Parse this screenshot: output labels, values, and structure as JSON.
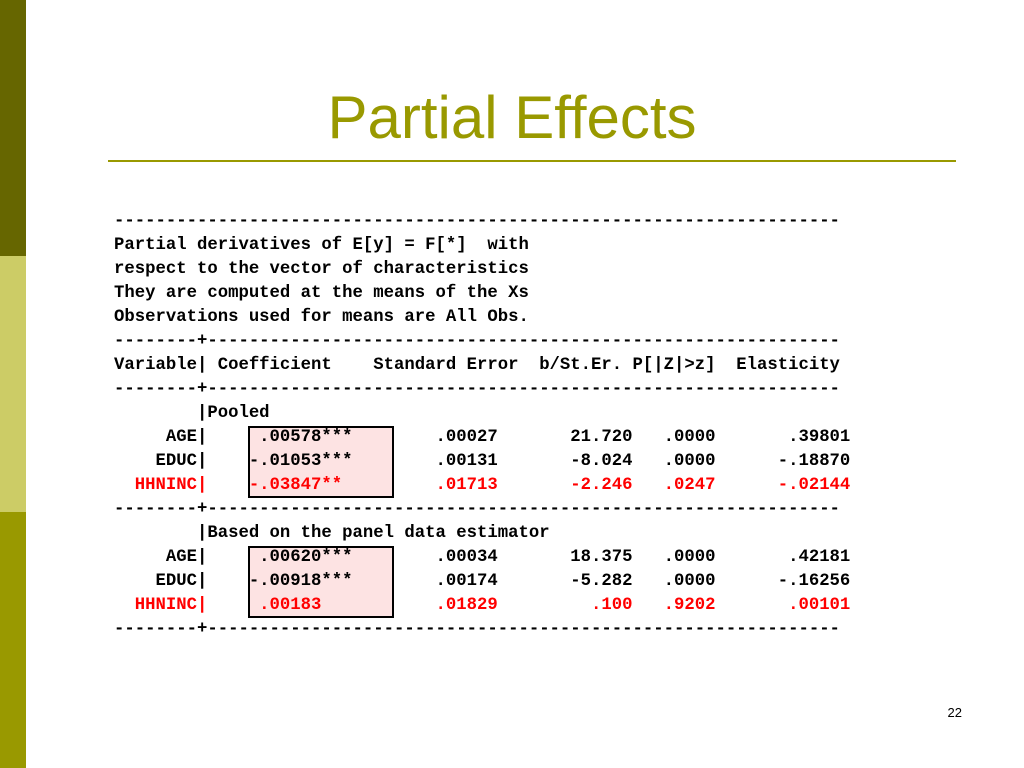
{
  "slide": {
    "title": "Partial Effects",
    "page_number": "22"
  },
  "colors": {
    "accent": "#999900",
    "dark_bar": "#666600",
    "light_bar": "#cccc66",
    "highlight": "#fde3e3",
    "red_text": "#ff0000"
  },
  "output": {
    "separator_full": "----------------------------------------------------------------------",
    "separator_split": "--------+-------------------------------------------------------------",
    "header_lines": [
      "Partial derivatives of E[y] = F[*]  with",
      "respect to the vector of characteristics",
      "They are computed at the means of the Xs",
      "Observations used for means are All Obs."
    ],
    "column_header": "Variable| Coefficient    Standard Error  b/St.Er. P[|Z|>z]  Elasticity",
    "pooled_label": "        |Pooled",
    "pooled_rows": [
      {
        "text": "     AGE|     .00578***        .00027       21.720   .0000       .39801",
        "red": false
      },
      {
        "text": "    EDUC|    -.01053***        .00131       -8.024   .0000      -.18870",
        "red": false
      },
      {
        "text": "  HHNINC|    -.03847**         .01713       -2.246   .0247      -.02144",
        "red": true
      }
    ],
    "panel_label": "        |Based on the panel data estimator",
    "panel_rows": [
      {
        "text": "     AGE|     .00620***        .00034       18.375   .0000       .42181",
        "red": false
      },
      {
        "text": "    EDUC|    -.00918***        .00174       -5.282   .0000      -.16256",
        "red": false
      },
      {
        "text": "  HHNINC|     .00183           .01829         .100   .9202       .00101",
        "red": true
      }
    ]
  }
}
